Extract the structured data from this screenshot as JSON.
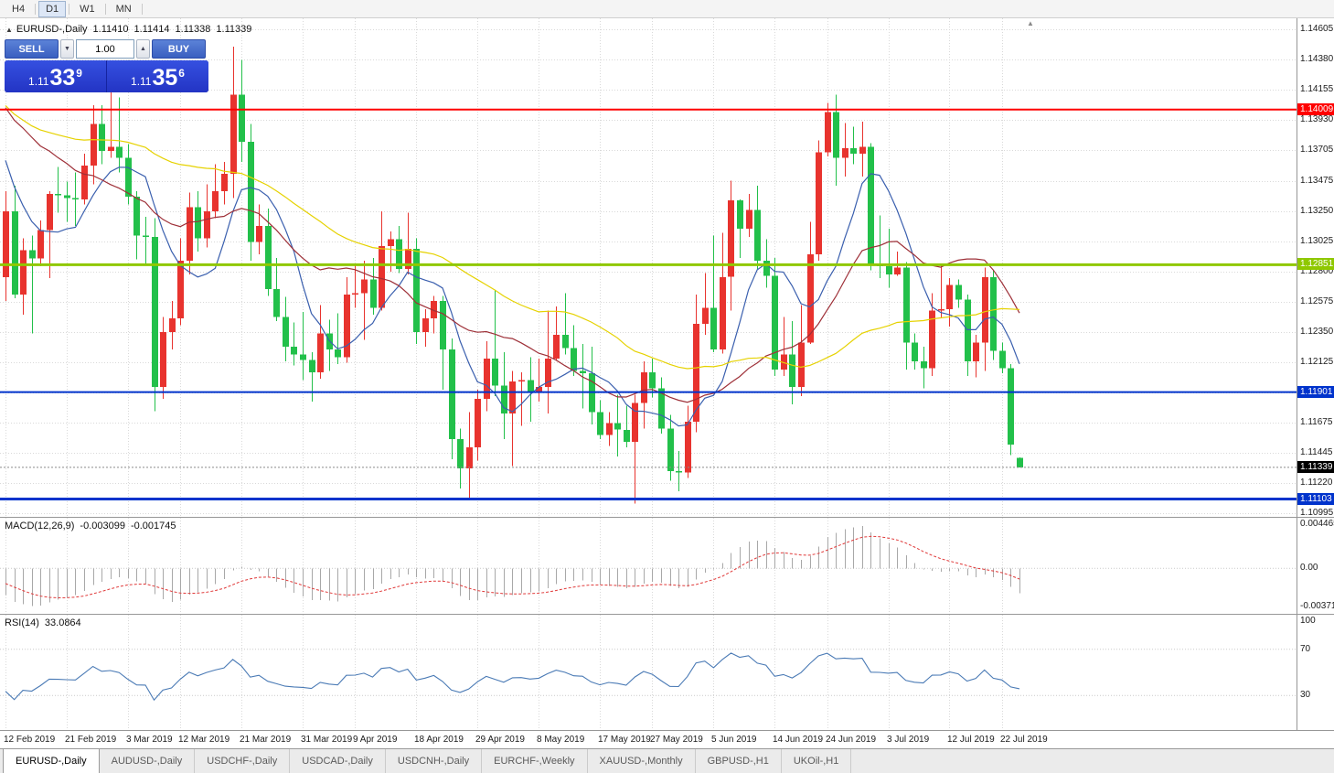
{
  "colors": {
    "trade_panel_blue": "#2334c4",
    "trade_panel_blue_light": "#3550e0",
    "button_blue": "#3a5fc0",
    "button_blue_light": "#5b82d8",
    "tab_bar_bg": "#ebebeb",
    "active_tab_bg": "#ffffff"
  },
  "toolbar": {
    "periods": [
      {
        "label": "H4",
        "active": false
      },
      {
        "label": "D1",
        "active": true
      },
      {
        "label": "W1",
        "active": false
      },
      {
        "label": "MN",
        "active": false
      }
    ]
  },
  "chart": {
    "readout": {
      "expander": "▲",
      "symbol": "EURUSD-,Daily",
      "open": "1.11410",
      "high": "1.11414",
      "low": "1.11338",
      "close": "1.11339"
    },
    "trade_panel": {
      "sell_label": "SELL",
      "buy_label": "BUY",
      "volume": "1.00",
      "spinner_down": "▼",
      "spinner_up": "▲",
      "sell_price": {
        "prefix": "1.11",
        "big": "33",
        "sup": "9"
      },
      "buy_price": {
        "prefix": "1.11",
        "big": "35",
        "sup": "6"
      }
    },
    "shift_marker": "▲"
  },
  "chart_data": {
    "type": "candlestick",
    "symbol": "EURUSD-",
    "timeframe": "Daily",
    "colors": {
      "up_candle": "#e8332e",
      "down_candle": "#22c04a",
      "grid": "#d9d9d9",
      "bid_line": "#8a8a8a",
      "macd_hist": "#a8a8a8",
      "macd_signal": "#e03a3a",
      "rsi_line": "#4a7ab5",
      "level_dotted": "#c9c9c9"
    },
    "price_axis_labels": [
      "1.14605",
      "1.14380",
      "1.14155",
      "1.13930",
      "1.13705",
      "1.13475",
      "1.13250",
      "1.13025",
      "1.12800",
      "1.12575",
      "1.12350",
      "1.12125",
      "1.11900",
      "1.11675",
      "1.11445",
      "1.11220",
      "1.10995"
    ],
    "price_badges": [
      {
        "text": "1.14009",
        "price": 1.14009,
        "bg": "#ff0000"
      },
      {
        "text": "1.12851",
        "price": 1.12851,
        "bg": "#8fc800"
      },
      {
        "text": "1.11901",
        "price": 1.11901,
        "bg": "#0033cc"
      },
      {
        "text": "1.11339",
        "price": 1.11339,
        "bg": "#000000"
      },
      {
        "text": "1.11103",
        "price": 1.11103,
        "bg": "#0033cc"
      }
    ],
    "hlines": [
      {
        "price": 1.14009,
        "color": "#ff0000",
        "width": 2
      },
      {
        "price": 1.12851,
        "color": "#8fc800",
        "width": 3
      },
      {
        "price": 1.11901,
        "color": "#0033cc",
        "width": 2
      },
      {
        "price": 1.11103,
        "color": "#0033cc",
        "width": 3
      }
    ],
    "current_price": 1.11339,
    "moving_averages": [
      {
        "period": 8,
        "color": "#3a5fae"
      },
      {
        "period": 20,
        "color": "#9e3038"
      },
      {
        "period": 45,
        "color": "#e6d200"
      }
    ],
    "x_labels": [
      {
        "label": "12 Feb 2019",
        "i": 0
      },
      {
        "label": "21 Feb 2019",
        "i": 7
      },
      {
        "label": "3 Mar 2019",
        "i": 14
      },
      {
        "label": "12 Mar 2019",
        "i": 20
      },
      {
        "label": "21 Mar 2019",
        "i": 27
      },
      {
        "label": "31 Mar 2019",
        "i": 34
      },
      {
        "label": "9 Apr 2019",
        "i": 40
      },
      {
        "label": "18 Apr 2019",
        "i": 47
      },
      {
        "label": "29 Apr 2019",
        "i": 54
      },
      {
        "label": "8 May 2019",
        "i": 61
      },
      {
        "label": "17 May 2019",
        "i": 68
      },
      {
        "label": "27 May 2019",
        "i": 74
      },
      {
        "label": "5 Jun 2019",
        "i": 81
      },
      {
        "label": "14 Jun 2019",
        "i": 88
      },
      {
        "label": "24 Jun 2019",
        "i": 94
      },
      {
        "label": "3 Jul 2019",
        "i": 101
      },
      {
        "label": "12 Jul 2019",
        "i": 108
      },
      {
        "label": "22 Jul 2019",
        "i": 114
      }
    ],
    "warmup_closes": [
      1.1435,
      1.1448,
      1.1415,
      1.1426,
      1.1443,
      1.1412,
      1.1436,
      1.1421,
      1.1439,
      1.1415,
      1.141,
      1.1434,
      1.1443,
      1.142,
      1.1408,
      1.1385,
      1.1366,
      1.1344,
      1.134,
      1.1316
    ],
    "candles": [
      [
        1.1276,
        1.134,
        1.1258,
        1.1325
      ],
      [
        1.1325,
        1.1344,
        1.126,
        1.1263
      ],
      [
        1.1263,
        1.1305,
        1.1248,
        1.1296
      ],
      [
        1.1296,
        1.1307,
        1.1234,
        1.129
      ],
      [
        1.129,
        1.1318,
        1.1284,
        1.1311
      ],
      [
        1.1311,
        1.134,
        1.1275,
        1.1338
      ],
      [
        1.1338,
        1.1358,
        1.1324,
        1.1337
      ],
      [
        1.1337,
        1.1347,
        1.1317,
        1.1335
      ],
      [
        1.1335,
        1.1354,
        1.1314,
        1.1334
      ],
      [
        1.1334,
        1.1368,
        1.133,
        1.1359
      ],
      [
        1.1359,
        1.1404,
        1.1345,
        1.139
      ],
      [
        1.139,
        1.1404,
        1.136,
        1.137
      ],
      [
        1.137,
        1.142,
        1.1365,
        1.1373
      ],
      [
        1.1373,
        1.141,
        1.1354,
        1.1365
      ],
      [
        1.1365,
        1.1375,
        1.133,
        1.1336
      ],
      [
        1.1336,
        1.134,
        1.1289,
        1.1307
      ],
      [
        1.1307,
        1.1321,
        1.1285,
        1.1306
      ],
      [
        1.1306,
        1.132,
        1.1176,
        1.1194
      ],
      [
        1.1194,
        1.1246,
        1.1185,
        1.1235
      ],
      [
        1.1235,
        1.1258,
        1.1222,
        1.1245
      ],
      [
        1.1245,
        1.1305,
        1.124,
        1.1288
      ],
      [
        1.1288,
        1.1339,
        1.1278,
        1.1328
      ],
      [
        1.1328,
        1.134,
        1.1295,
        1.1305
      ],
      [
        1.1305,
        1.1345,
        1.1298,
        1.1325
      ],
      [
        1.1325,
        1.136,
        1.132,
        1.134
      ],
      [
        1.134,
        1.1362,
        1.133,
        1.1353
      ],
      [
        1.1353,
        1.1448,
        1.1335,
        1.1412
      ],
      [
        1.1412,
        1.1438,
        1.1362,
        1.1377
      ],
      [
        1.1377,
        1.139,
        1.1288,
        1.1302
      ],
      [
        1.1302,
        1.133,
        1.1293,
        1.1314
      ],
      [
        1.1314,
        1.1327,
        1.1262,
        1.1267
      ],
      [
        1.1267,
        1.129,
        1.1243,
        1.1246
      ],
      [
        1.1246,
        1.1261,
        1.1213,
        1.1224
      ],
      [
        1.1224,
        1.1242,
        1.121,
        1.1218
      ],
      [
        1.1218,
        1.125,
        1.1199,
        1.1214
      ],
      [
        1.1214,
        1.122,
        1.1183,
        1.1205
      ],
      [
        1.1205,
        1.1255,
        1.12,
        1.1234
      ],
      [
        1.1234,
        1.1244,
        1.1206,
        1.1222
      ],
      [
        1.1222,
        1.1249,
        1.1211,
        1.1216
      ],
      [
        1.1216,
        1.1276,
        1.1212,
        1.1263
      ],
      [
        1.1263,
        1.1285,
        1.1253,
        1.1264
      ],
      [
        1.1264,
        1.1288,
        1.1229,
        1.1274
      ],
      [
        1.1274,
        1.129,
        1.1248,
        1.1253
      ],
      [
        1.1253,
        1.1325,
        1.1251,
        1.1299
      ],
      [
        1.1299,
        1.131,
        1.128,
        1.1304
      ],
      [
        1.1304,
        1.1314,
        1.1279,
        1.1282
      ],
      [
        1.1282,
        1.1324,
        1.1278,
        1.1297
      ],
      [
        1.1297,
        1.1305,
        1.1226,
        1.1235
      ],
      [
        1.1235,
        1.1252,
        1.1224,
        1.1245
      ],
      [
        1.1245,
        1.1262,
        1.1234,
        1.1258
      ],
      [
        1.1258,
        1.1262,
        1.1192,
        1.1222
      ],
      [
        1.1222,
        1.123,
        1.114,
        1.1155
      ],
      [
        1.1155,
        1.1163,
        1.1118,
        1.1133
      ],
      [
        1.1133,
        1.1175,
        1.1111,
        1.1149
      ],
      [
        1.1149,
        1.1192,
        1.1139,
        1.1185
      ],
      [
        1.1185,
        1.1228,
        1.1176,
        1.1215
      ],
      [
        1.1215,
        1.1266,
        1.1187,
        1.1195
      ],
      [
        1.1195,
        1.122,
        1.1155,
        1.1174
      ],
      [
        1.1174,
        1.1206,
        1.1135,
        1.1198
      ],
      [
        1.1198,
        1.1205,
        1.1165,
        1.1199
      ],
      [
        1.1199,
        1.1216,
        1.1168,
        1.119
      ],
      [
        1.119,
        1.1215,
        1.1183,
        1.1194
      ],
      [
        1.1194,
        1.1251,
        1.1174,
        1.1215
      ],
      [
        1.1215,
        1.1254,
        1.1214,
        1.1233
      ],
      [
        1.1233,
        1.1264,
        1.1218,
        1.1223
      ],
      [
        1.1223,
        1.124,
        1.1202,
        1.1206
      ],
      [
        1.1206,
        1.1226,
        1.1178,
        1.1204
      ],
      [
        1.1204,
        1.1224,
        1.1166,
        1.1175
      ],
      [
        1.1175,
        1.1184,
        1.1155,
        1.1158
      ],
      [
        1.1158,
        1.1175,
        1.115,
        1.1167
      ],
      [
        1.1167,
        1.1188,
        1.1142,
        1.1162
      ],
      [
        1.1162,
        1.118,
        1.1149,
        1.1153
      ],
      [
        1.1153,
        1.1188,
        1.1107,
        1.1182
      ],
      [
        1.1182,
        1.1213,
        1.1163,
        1.1205
      ],
      [
        1.1205,
        1.1215,
        1.1186,
        1.1193
      ],
      [
        1.1193,
        1.1201,
        1.1159,
        1.1163
      ],
      [
        1.1163,
        1.1173,
        1.1124,
        1.1131
      ],
      [
        1.1131,
        1.1146,
        1.1116,
        1.113
      ],
      [
        1.113,
        1.118,
        1.1126,
        1.1168
      ],
      [
        1.1168,
        1.1263,
        1.116,
        1.1241
      ],
      [
        1.1241,
        1.1279,
        1.1233,
        1.1253
      ],
      [
        1.1253,
        1.1307,
        1.122,
        1.1222
      ],
      [
        1.1222,
        1.1309,
        1.1219,
        1.1276
      ],
      [
        1.1276,
        1.1348,
        1.1251,
        1.1333
      ],
      [
        1.1333,
        1.1334,
        1.129,
        1.1312
      ],
      [
        1.1312,
        1.1338,
        1.1306,
        1.1326
      ],
      [
        1.1326,
        1.1344,
        1.1282,
        1.1288
      ],
      [
        1.1288,
        1.1304,
        1.1268,
        1.1277
      ],
      [
        1.1277,
        1.129,
        1.1202,
        1.1207
      ],
      [
        1.1207,
        1.1246,
        1.1202,
        1.1218
      ],
      [
        1.1218,
        1.1243,
        1.1181,
        1.1194
      ],
      [
        1.1194,
        1.1255,
        1.1187,
        1.1227
      ],
      [
        1.1227,
        1.1317,
        1.1226,
        1.1293
      ],
      [
        1.1293,
        1.1378,
        1.1288,
        1.1369
      ],
      [
        1.1369,
        1.1406,
        1.1366,
        1.1399
      ],
      [
        1.1399,
        1.1412,
        1.1344,
        1.1365
      ],
      [
        1.1365,
        1.1391,
        1.1351,
        1.1372
      ],
      [
        1.1372,
        1.1388,
        1.136,
        1.1368
      ],
      [
        1.1368,
        1.1392,
        1.1351,
        1.1373
      ],
      [
        1.1373,
        1.1376,
        1.1281,
        1.1285
      ],
      [
        1.1285,
        1.1322,
        1.1275,
        1.1284
      ],
      [
        1.1284,
        1.1312,
        1.1268,
        1.1278
      ],
      [
        1.1278,
        1.1295,
        1.1277,
        1.1283
      ],
      [
        1.1283,
        1.1287,
        1.1207,
        1.1227
      ],
      [
        1.1227,
        1.1234,
        1.1207,
        1.1213
      ],
      [
        1.1213,
        1.1224,
        1.1193,
        1.1208
      ],
      [
        1.1208,
        1.1264,
        1.1202,
        1.1251
      ],
      [
        1.1251,
        1.1285,
        1.1245,
        1.1252
      ],
      [
        1.1252,
        1.1275,
        1.1239,
        1.127
      ],
      [
        1.127,
        1.1274,
        1.1253,
        1.1259
      ],
      [
        1.1259,
        1.1263,
        1.1202,
        1.1213
      ],
      [
        1.1213,
        1.1233,
        1.1201,
        1.1227
      ],
      [
        1.1227,
        1.1283,
        1.1206,
        1.1276
      ],
      [
        1.1276,
        1.1281,
        1.1214,
        1.1221
      ],
      [
        1.1221,
        1.1227,
        1.1204,
        1.1208
      ],
      [
        1.1208,
        1.1211,
        1.1143,
        1.1151
      ],
      [
        1.1141,
        1.11414,
        1.11338,
        1.11339
      ]
    ],
    "macd": {
      "name": "MACD(12,26,9)",
      "value": "-0.003099",
      "signal_value": "-0.001745",
      "fast": 12,
      "slow": 26,
      "signal": 9,
      "axis": [
        {
          "text": "0.004465",
          "v": 0.004465
        },
        {
          "text": "0.00",
          "v": 0
        },
        {
          "text": "-0.00371",
          "v": -0.00371
        }
      ]
    },
    "rsi": {
      "name": "RSI(14)",
      "value": "33.0864",
      "period": 14,
      "levels": [
        70,
        30
      ],
      "axis": [
        {
          "text": "100",
          "v": 100
        },
        {
          "text": "70",
          "v": 70
        },
        {
          "text": "30",
          "v": 30
        }
      ]
    }
  },
  "tabs": [
    {
      "label": "EURUSD-,Daily",
      "active": true
    },
    {
      "label": "AUDUSD-,Daily",
      "active": false
    },
    {
      "label": "USDCHF-,Daily",
      "active": false
    },
    {
      "label": "USDCAD-,Daily",
      "active": false
    },
    {
      "label": "USDCNH-,Daily",
      "active": false
    },
    {
      "label": "EURCHF-,Weekly",
      "active": false
    },
    {
      "label": "XAUUSD-,Monthly",
      "active": false
    },
    {
      "label": "GBPUSD-,H1",
      "active": false
    },
    {
      "label": "UKOil-,H1",
      "active": false
    }
  ]
}
